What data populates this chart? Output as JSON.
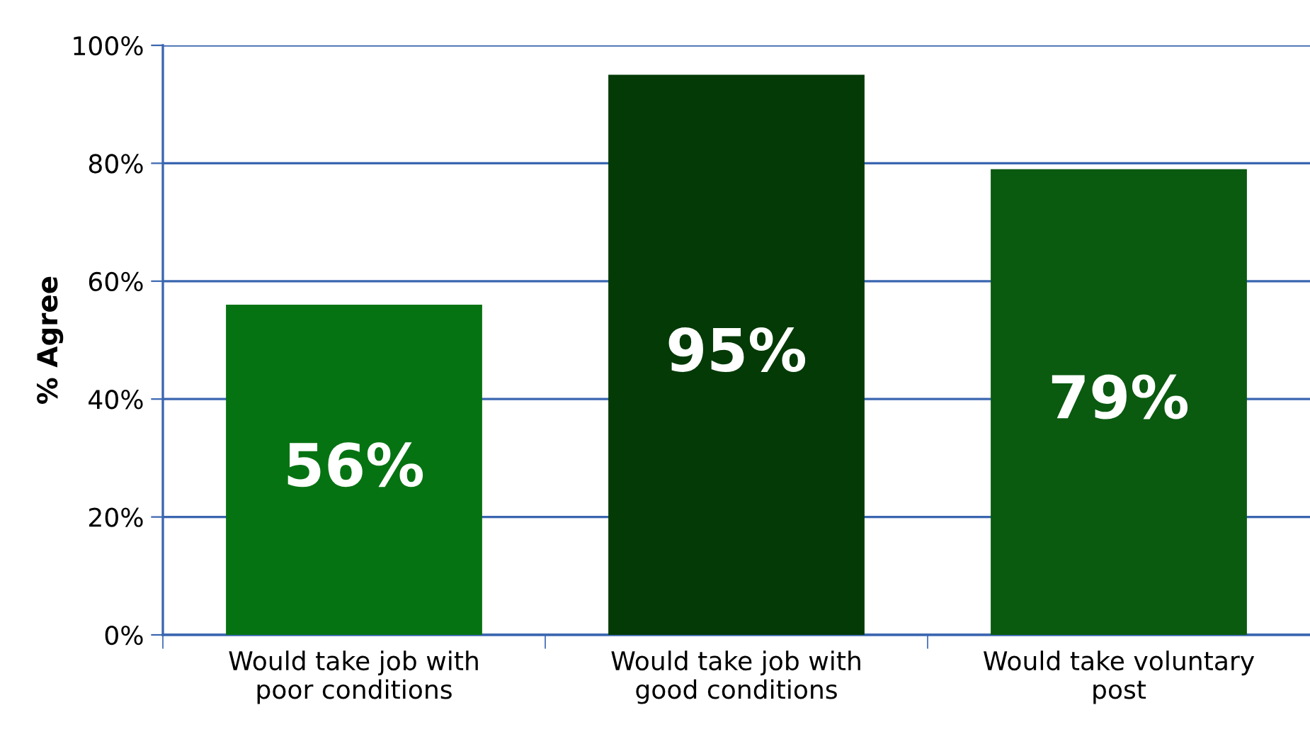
{
  "chart_data": {
    "type": "bar",
    "ylabel": "% Agree",
    "categories": [
      "Would take job with\npoor conditions",
      "Would take job with\ngood conditions",
      "Would take voluntary\npost"
    ],
    "values": [
      56,
      95,
      79
    ],
    "colors": [
      "#067312",
      "#033a06",
      "#0a5a10"
    ],
    "value_labels": [
      "56%",
      "95%",
      "79%"
    ],
    "ylim": [
      0,
      100
    ],
    "yticks": [
      {
        "value": 0,
        "label": "0%"
      },
      {
        "value": 20,
        "label": "20%"
      },
      {
        "value": 40,
        "label": "40%"
      },
      {
        "value": 60,
        "label": "60%"
      },
      {
        "value": 80,
        "label": "80%"
      },
      {
        "value": 100,
        "label": "100%"
      }
    ],
    "grid": "y",
    "legend": false
  }
}
